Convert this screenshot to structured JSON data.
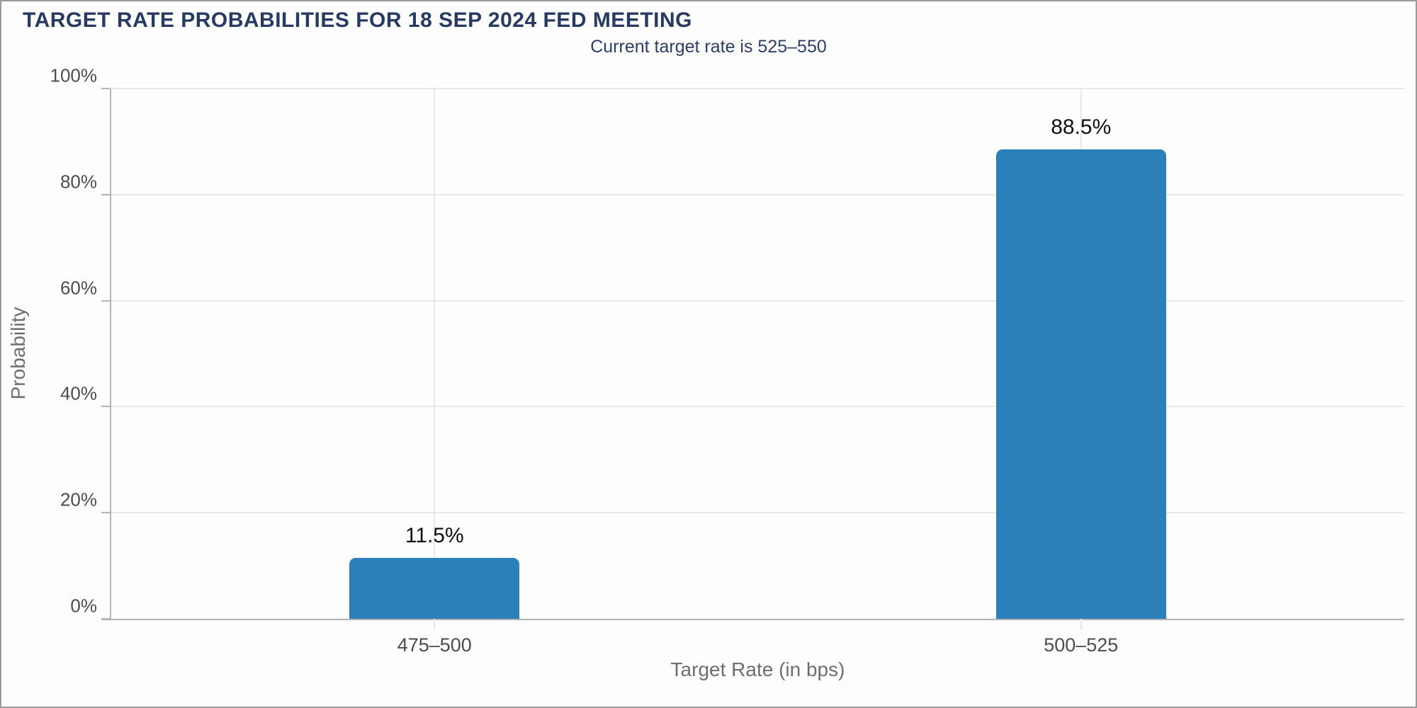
{
  "header": {
    "title": "TARGET RATE PROBABILITIES FOR 18 SEP 2024 FED MEETING",
    "subtitle": "Current target rate is 525–550"
  },
  "chart_data": {
    "type": "bar",
    "title": "TARGET RATE PROBABILITIES FOR 18 SEP 2024 FED MEETING",
    "subtitle": "Current target rate is 525–550",
    "categories": [
      "475–500",
      "500–525"
    ],
    "values": [
      11.5,
      88.5
    ],
    "value_labels": [
      "11.5%",
      "88.5%"
    ],
    "xlabel": "Target Rate (in bps)",
    "ylabel": "Probability",
    "ylim": [
      0,
      100
    ],
    "yticks": [
      0,
      20,
      40,
      60,
      80,
      100
    ],
    "ytick_labels": [
      "0%",
      "20%",
      "40%",
      "60%",
      "80%",
      "100%"
    ],
    "grid": true,
    "legend": false
  },
  "colors": {
    "title_text": "#263a63",
    "subtitle_text": "#2c3e68",
    "bar_fill": "#2b80b9",
    "gridline": "#e7e7e7",
    "axis_line": "#b3b3b3",
    "tick_text": "#4d4d4d",
    "axis_title_text": "#6e6e6e",
    "value_label_text": "#111111",
    "frame_border": "#9b9b9b",
    "background": "#fdfdfd"
  }
}
